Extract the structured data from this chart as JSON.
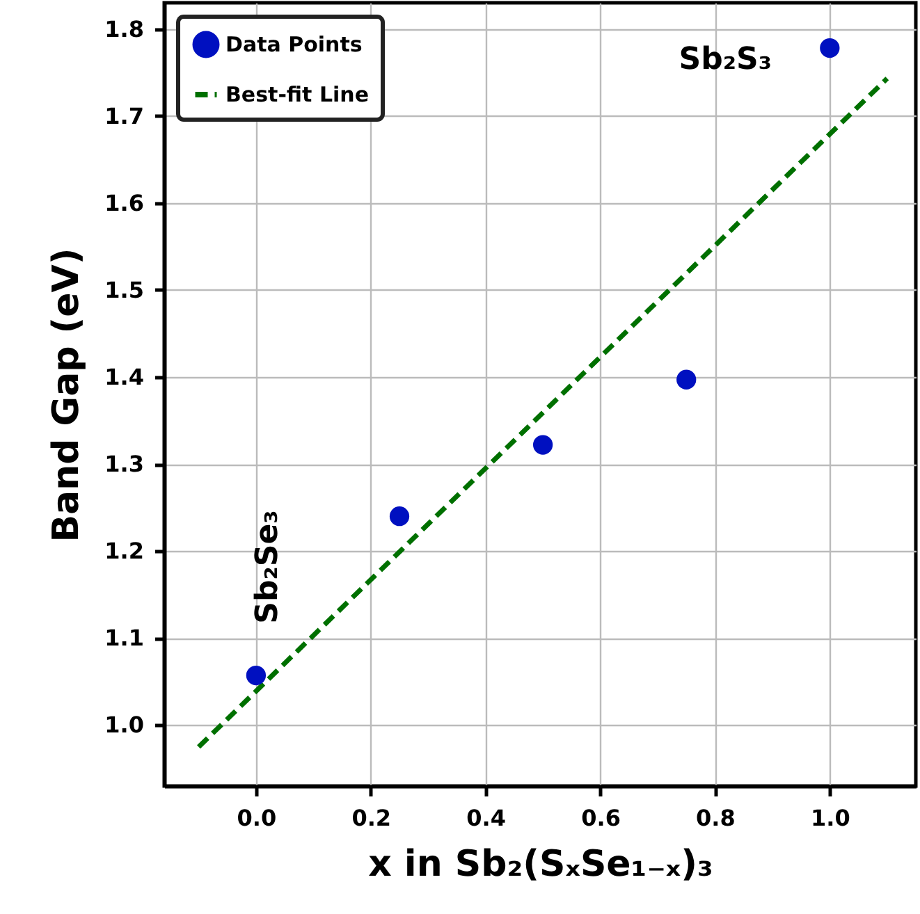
{
  "chart_data": {
    "type": "scatter",
    "xlabel": "x in Sb₂(SₓSe₁₋ₓ)₃",
    "ylabel": "Band Gap (eV)",
    "xlim": [
      -0.16,
      1.15
    ],
    "ylim": [
      0.93,
      1.83
    ],
    "xticks": [
      {
        "value": 0,
        "label": "0.0"
      },
      {
        "value": 0.2,
        "label": "0.2"
      },
      {
        "value": 0.4,
        "label": "0.4"
      },
      {
        "value": 0.6,
        "label": "0.6"
      },
      {
        "value": 0.8,
        "label": "0.8"
      },
      {
        "value": 1,
        "label": "1.0"
      }
    ],
    "yticks": [
      {
        "value": 1,
        "label": "1.0"
      },
      {
        "value": 1.1,
        "label": "1.1"
      },
      {
        "value": 1.2,
        "label": "1.2"
      },
      {
        "value": 1.3,
        "label": "1.3"
      },
      {
        "value": 1.4,
        "label": "1.4"
      },
      {
        "value": 1.5,
        "label": "1.5"
      },
      {
        "value": 1.6,
        "label": "1.6"
      },
      {
        "value": 1.7,
        "label": "1.7"
      },
      {
        "value": 1.8,
        "label": "1.8"
      }
    ],
    "series": [
      {
        "name": "Data Points",
        "marker": "circle",
        "color": "#0010c0",
        "x": [
          0,
          0.25,
          0.5,
          0.75,
          1
        ],
        "values": [
          1.057,
          1.24,
          1.322,
          1.397,
          1.778
        ]
      },
      {
        "name": "Best-fit Line",
        "type": "line",
        "line_style": "dashed",
        "color": "#007000",
        "x": [
          -0.1,
          1.1
        ],
        "values": [
          0.975,
          1.743
        ]
      }
    ],
    "annotations": [
      {
        "text": "Sb₂Se₃",
        "x": 0,
        "y": 1.057
      },
      {
        "text": "Sb₂S₃",
        "x": 1,
        "y": 1.778
      }
    ],
    "grid": true,
    "legend": "top left"
  }
}
